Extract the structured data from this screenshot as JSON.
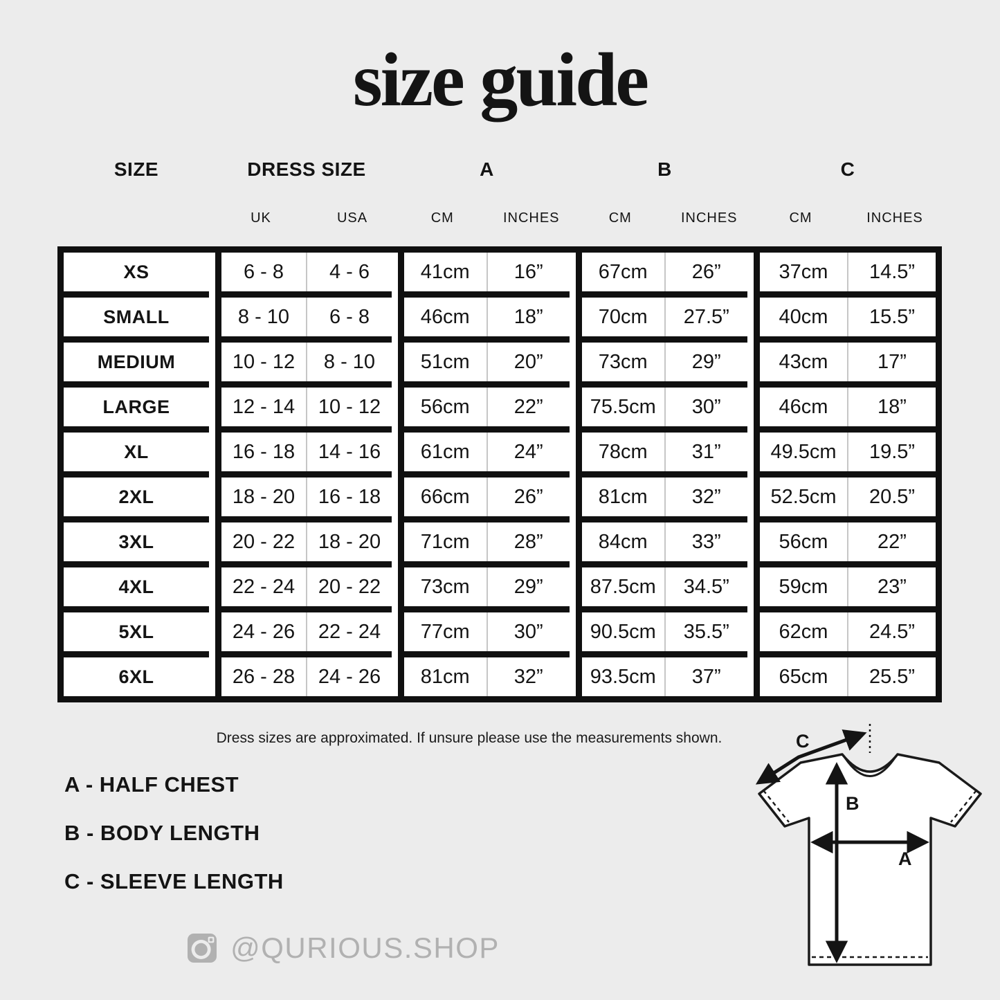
{
  "title": "size guide",
  "colors": {
    "background": "#ececec",
    "surface": "#ffffff",
    "border": "#101010",
    "text": "#141414",
    "muted": "#b1b1b1",
    "divider": "#c6c6c6"
  },
  "table": {
    "groups": [
      {
        "label": "SIZE"
      },
      {
        "label": "DRESS SIZE"
      },
      {
        "label": "A"
      },
      {
        "label": "B"
      },
      {
        "label": "C"
      }
    ],
    "subheaders": [
      "UK",
      "USA",
      "CM",
      "INCHES",
      "CM",
      "INCHES",
      "CM",
      "INCHES"
    ],
    "rows": [
      [
        "XS",
        "6 - 8",
        "4 - 6",
        "41cm",
        "16”",
        "67cm",
        "26”",
        "37cm",
        "14.5”"
      ],
      [
        "SMALL",
        "8 - 10",
        "6 - 8",
        "46cm",
        "18”",
        "70cm",
        "27.5”",
        "40cm",
        "15.5”"
      ],
      [
        "MEDIUM",
        "10 - 12",
        "8 - 10",
        "51cm",
        "20”",
        "73cm",
        "29”",
        "43cm",
        "17”"
      ],
      [
        "LARGE",
        "12 - 14",
        "10 - 12",
        "56cm",
        "22”",
        "75.5cm",
        "30”",
        "46cm",
        "18”"
      ],
      [
        "XL",
        "16 - 18",
        "14 - 16",
        "61cm",
        "24”",
        "78cm",
        "31”",
        "49.5cm",
        "19.5”"
      ],
      [
        "2XL",
        "18 - 20",
        "16 - 18",
        "66cm",
        "26”",
        "81cm",
        "32”",
        "52.5cm",
        "20.5”"
      ],
      [
        "3XL",
        "20 - 22",
        "18 - 20",
        "71cm",
        "28”",
        "84cm",
        "33”",
        "56cm",
        "22”"
      ],
      [
        "4XL",
        "22 - 24",
        "20 - 22",
        "73cm",
        "29”",
        "87.5cm",
        "34.5”",
        "59cm",
        "23”"
      ],
      [
        "5XL",
        "24 - 26",
        "22 - 24",
        "77cm",
        "30”",
        "90.5cm",
        "35.5”",
        "62cm",
        "24.5”"
      ],
      [
        "6XL",
        "26 - 28",
        "24 - 26",
        "81cm",
        "32”",
        "93.5cm",
        "37”",
        "65cm",
        "25.5”"
      ]
    ]
  },
  "note": "Dress sizes are approximated. If unsure please use the measurements shown.",
  "legend": {
    "items": [
      "A - HALF CHEST",
      "B - BODY LENGTH",
      "C - SLEEVE LENGTH"
    ]
  },
  "social": {
    "handle": "@QURIOUS.SHOP"
  },
  "diagram": {
    "labels": {
      "a": "A",
      "b": "B",
      "c": "C"
    }
  }
}
